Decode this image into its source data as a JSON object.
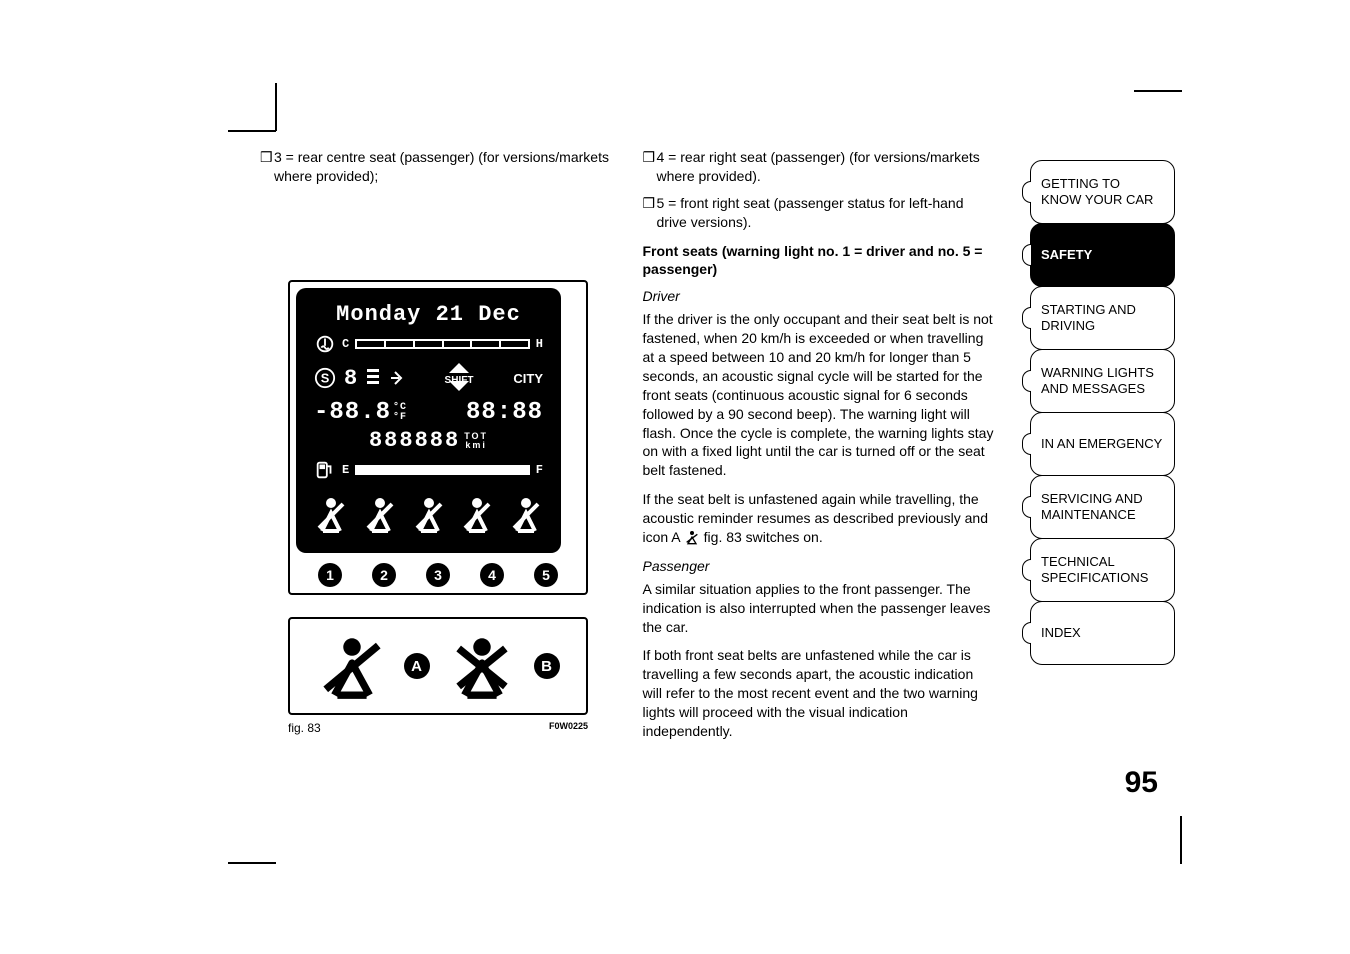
{
  "crop_color": "#000000",
  "left_column": {
    "item3": "3 = rear centre seat (passenger) (for versions/markets where provided);"
  },
  "right_column": {
    "item4": "4 = rear right seat (passenger) (for versions/markets where provided).",
    "item5": "5 = front right seat (passenger status for left-hand drive versions).",
    "section_heading": "Front seats (warning light no. 1 = driver and no. 5 = passenger)",
    "driver_heading": "Driver",
    "driver_p1": "If the driver is the only occupant and their seat belt is not fastened, when 20 km/h is exceeded or when travelling at a speed between 10 and 20 km/h for longer than 5 seconds, an acoustic signal cycle will be started for the front seats (continuous acoustic signal for 6 seconds followed by a 90 second beep). The warning light will flash. Once the cycle is complete, the warning lights stay on with a fixed light until the car is turned off or the seat belt fastened.",
    "driver_p2_a": "If the seat belt is unfastened again while travelling, the acoustic reminder resumes as described previously and icon A ",
    "driver_p2_b": " fig. 83 switches on.",
    "passenger_heading": "Passenger",
    "passenger_p1": "A similar situation applies to the front passenger. The indication is also interrupted when the passenger leaves the car.",
    "passenger_p2": "If both front seat belts are unfastened while the car is travelling a few seconds apart, the acoustic indication will refer to the most recent event and the two warning lights will proceed with the visual indication independently."
  },
  "figure": {
    "date_line": "Monday 21 Dec",
    "shift_label": "SHIFT",
    "city_label": "CITY",
    "gear_digits": "8",
    "temp_value": "-88.8",
    "temp_unit_c": "°C",
    "temp_unit_f": "°F",
    "time_value": "88:88",
    "odometer": "888888",
    "odo_unit_top": "TOT",
    "odo_unit_bottom": "kmi",
    "coolant_c": "C",
    "coolant_h": "H",
    "fuel_e": "E",
    "fuel_f": "F",
    "seat_numbers": [
      "1",
      "2",
      "3",
      "4",
      "5"
    ],
    "icon_letters": [
      "A",
      "B"
    ],
    "caption": "fig. 83",
    "code": "F0W0225",
    "lcd_bg": "#000000",
    "lcd_fg": "#ffffff",
    "frame_color": "#000000"
  },
  "tabs": [
    {
      "label": "GETTING TO KNOW YOUR CAR",
      "active": false
    },
    {
      "label": "SAFETY",
      "active": true
    },
    {
      "label": "STARTING AND DRIVING",
      "active": false
    },
    {
      "label": "WARNING LIGHTS AND MESSAGES",
      "active": false
    },
    {
      "label": "IN AN EMERGENCY",
      "active": false
    },
    {
      "label": "SERVICING AND MAINTENANCE",
      "active": false
    },
    {
      "label": "TECHNICAL SPECIFICATIONS",
      "active": false
    },
    {
      "label": "INDEX",
      "active": false
    }
  ],
  "page_number": "95",
  "bullet_glyph": "❒"
}
